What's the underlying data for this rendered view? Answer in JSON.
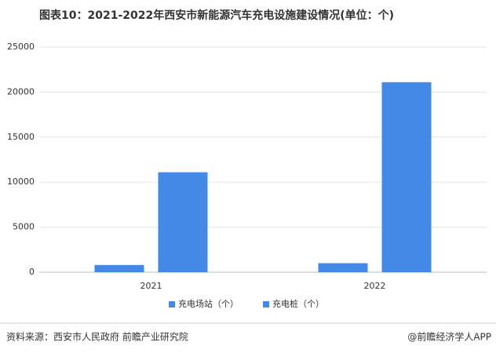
{
  "chart_data": {
    "type": "bar",
    "title": "图表10：2021-2022年西安市新能源汽车充电设施建设情况(单位：个)",
    "categories": [
      "2021",
      "2022"
    ],
    "series": [
      {
        "name": "充电场站（个）",
        "color": "#4589e6",
        "values": [
          800,
          1000
        ]
      },
      {
        "name": "充电桩（个）",
        "color": "#4589e6",
        "values": [
          11100,
          21100
        ]
      }
    ],
    "ylim": [
      0,
      25000
    ],
    "yticks": [
      0,
      5000,
      10000,
      15000,
      20000,
      25000
    ],
    "grid": true,
    "legend": "bottom",
    "source": "资料来源：西安市人民政府 前瞻产业研究院",
    "credit": "@前瞻经济学人APP"
  }
}
